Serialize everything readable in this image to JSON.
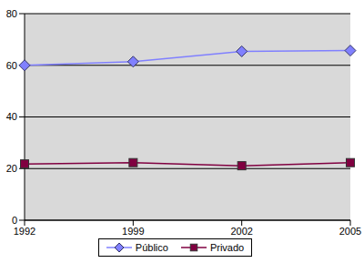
{
  "chart_data": {
    "type": "line",
    "categories": [
      "1992",
      "1999",
      "2002",
      "2005"
    ],
    "ylim": [
      0,
      80
    ],
    "yticks": [
      0,
      20,
      40,
      60,
      80
    ],
    "grid": true,
    "legend": "bottom",
    "series": [
      {
        "name": "Público",
        "color": "#8080ff",
        "marker": "diamond",
        "values": [
          60,
          61.4,
          65.4,
          65.7
        ]
      },
      {
        "name": "Privado",
        "color": "#800040",
        "marker": "square",
        "values": [
          21.8,
          22.3,
          21.1,
          22.3
        ]
      }
    ]
  }
}
